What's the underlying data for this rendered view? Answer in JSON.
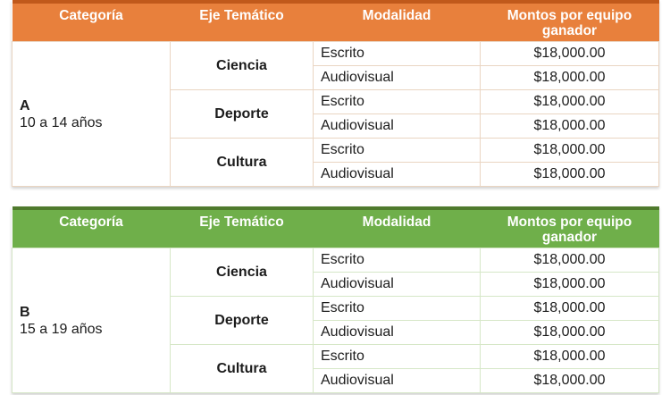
{
  "tables": [
    {
      "title": "Categoría A",
      "headers": [
        "Categoría",
        "Eje Temático",
        "Modalidad",
        "Montos por equipo ganador"
      ],
      "category": {
        "letter": "A",
        "range": "10 a 14 años"
      },
      "groups": [
        {
          "label": "Ciencia",
          "rows": [
            {
              "modalidad": "Escrito",
              "monto": "$18,000.00"
            },
            {
              "modalidad": "Audiovisual",
              "monto": "$18,000.00"
            }
          ]
        },
        {
          "label": "Deporte",
          "rows": [
            {
              "modalidad": "Escrito",
              "monto": "$18,000.00"
            },
            {
              "modalidad": "Audiovisual",
              "monto": "$18,000.00"
            }
          ]
        },
        {
          "label": "Cultura",
          "rows": [
            {
              "modalidad": "Escrito",
              "monto": "$18,000.00"
            },
            {
              "modalidad": "Audiovisual",
              "monto": "$18,000.00"
            }
          ]
        }
      ],
      "colors": {
        "header_bg": "#E8803C",
        "row_tint": "#FAE3D3",
        "cell_border": "#EAD5C2",
        "top_border": "#C0591B"
      }
    },
    {
      "title": "Categoría B",
      "headers": [
        "Categoría",
        "Eje Temático",
        "Modalidad",
        "Montos por equipo ganador"
      ],
      "category": {
        "letter": "B",
        "range": "15 a 19 años"
      },
      "groups": [
        {
          "label": "Ciencia",
          "rows": [
            {
              "modalidad": "Escrito",
              "monto": "$18,000.00"
            },
            {
              "modalidad": "Audiovisual",
              "monto": "$18,000.00"
            }
          ]
        },
        {
          "label": "Deporte",
          "rows": [
            {
              "modalidad": "Escrito",
              "monto": "$18,000.00"
            },
            {
              "modalidad": "Audiovisual",
              "monto": "$18,000.00"
            }
          ]
        },
        {
          "label": "Cultura",
          "rows": [
            {
              "modalidad": "Escrito",
              "monto": "$18,000.00"
            },
            {
              "modalidad": "Audiovisual",
              "monto": "$18,000.00"
            }
          ]
        }
      ],
      "colors": {
        "header_bg": "#6FAF4A",
        "row_tint": "#E1EFD8",
        "cell_border": "#D6E7C7",
        "top_border": "#4F7A2D"
      }
    }
  ]
}
